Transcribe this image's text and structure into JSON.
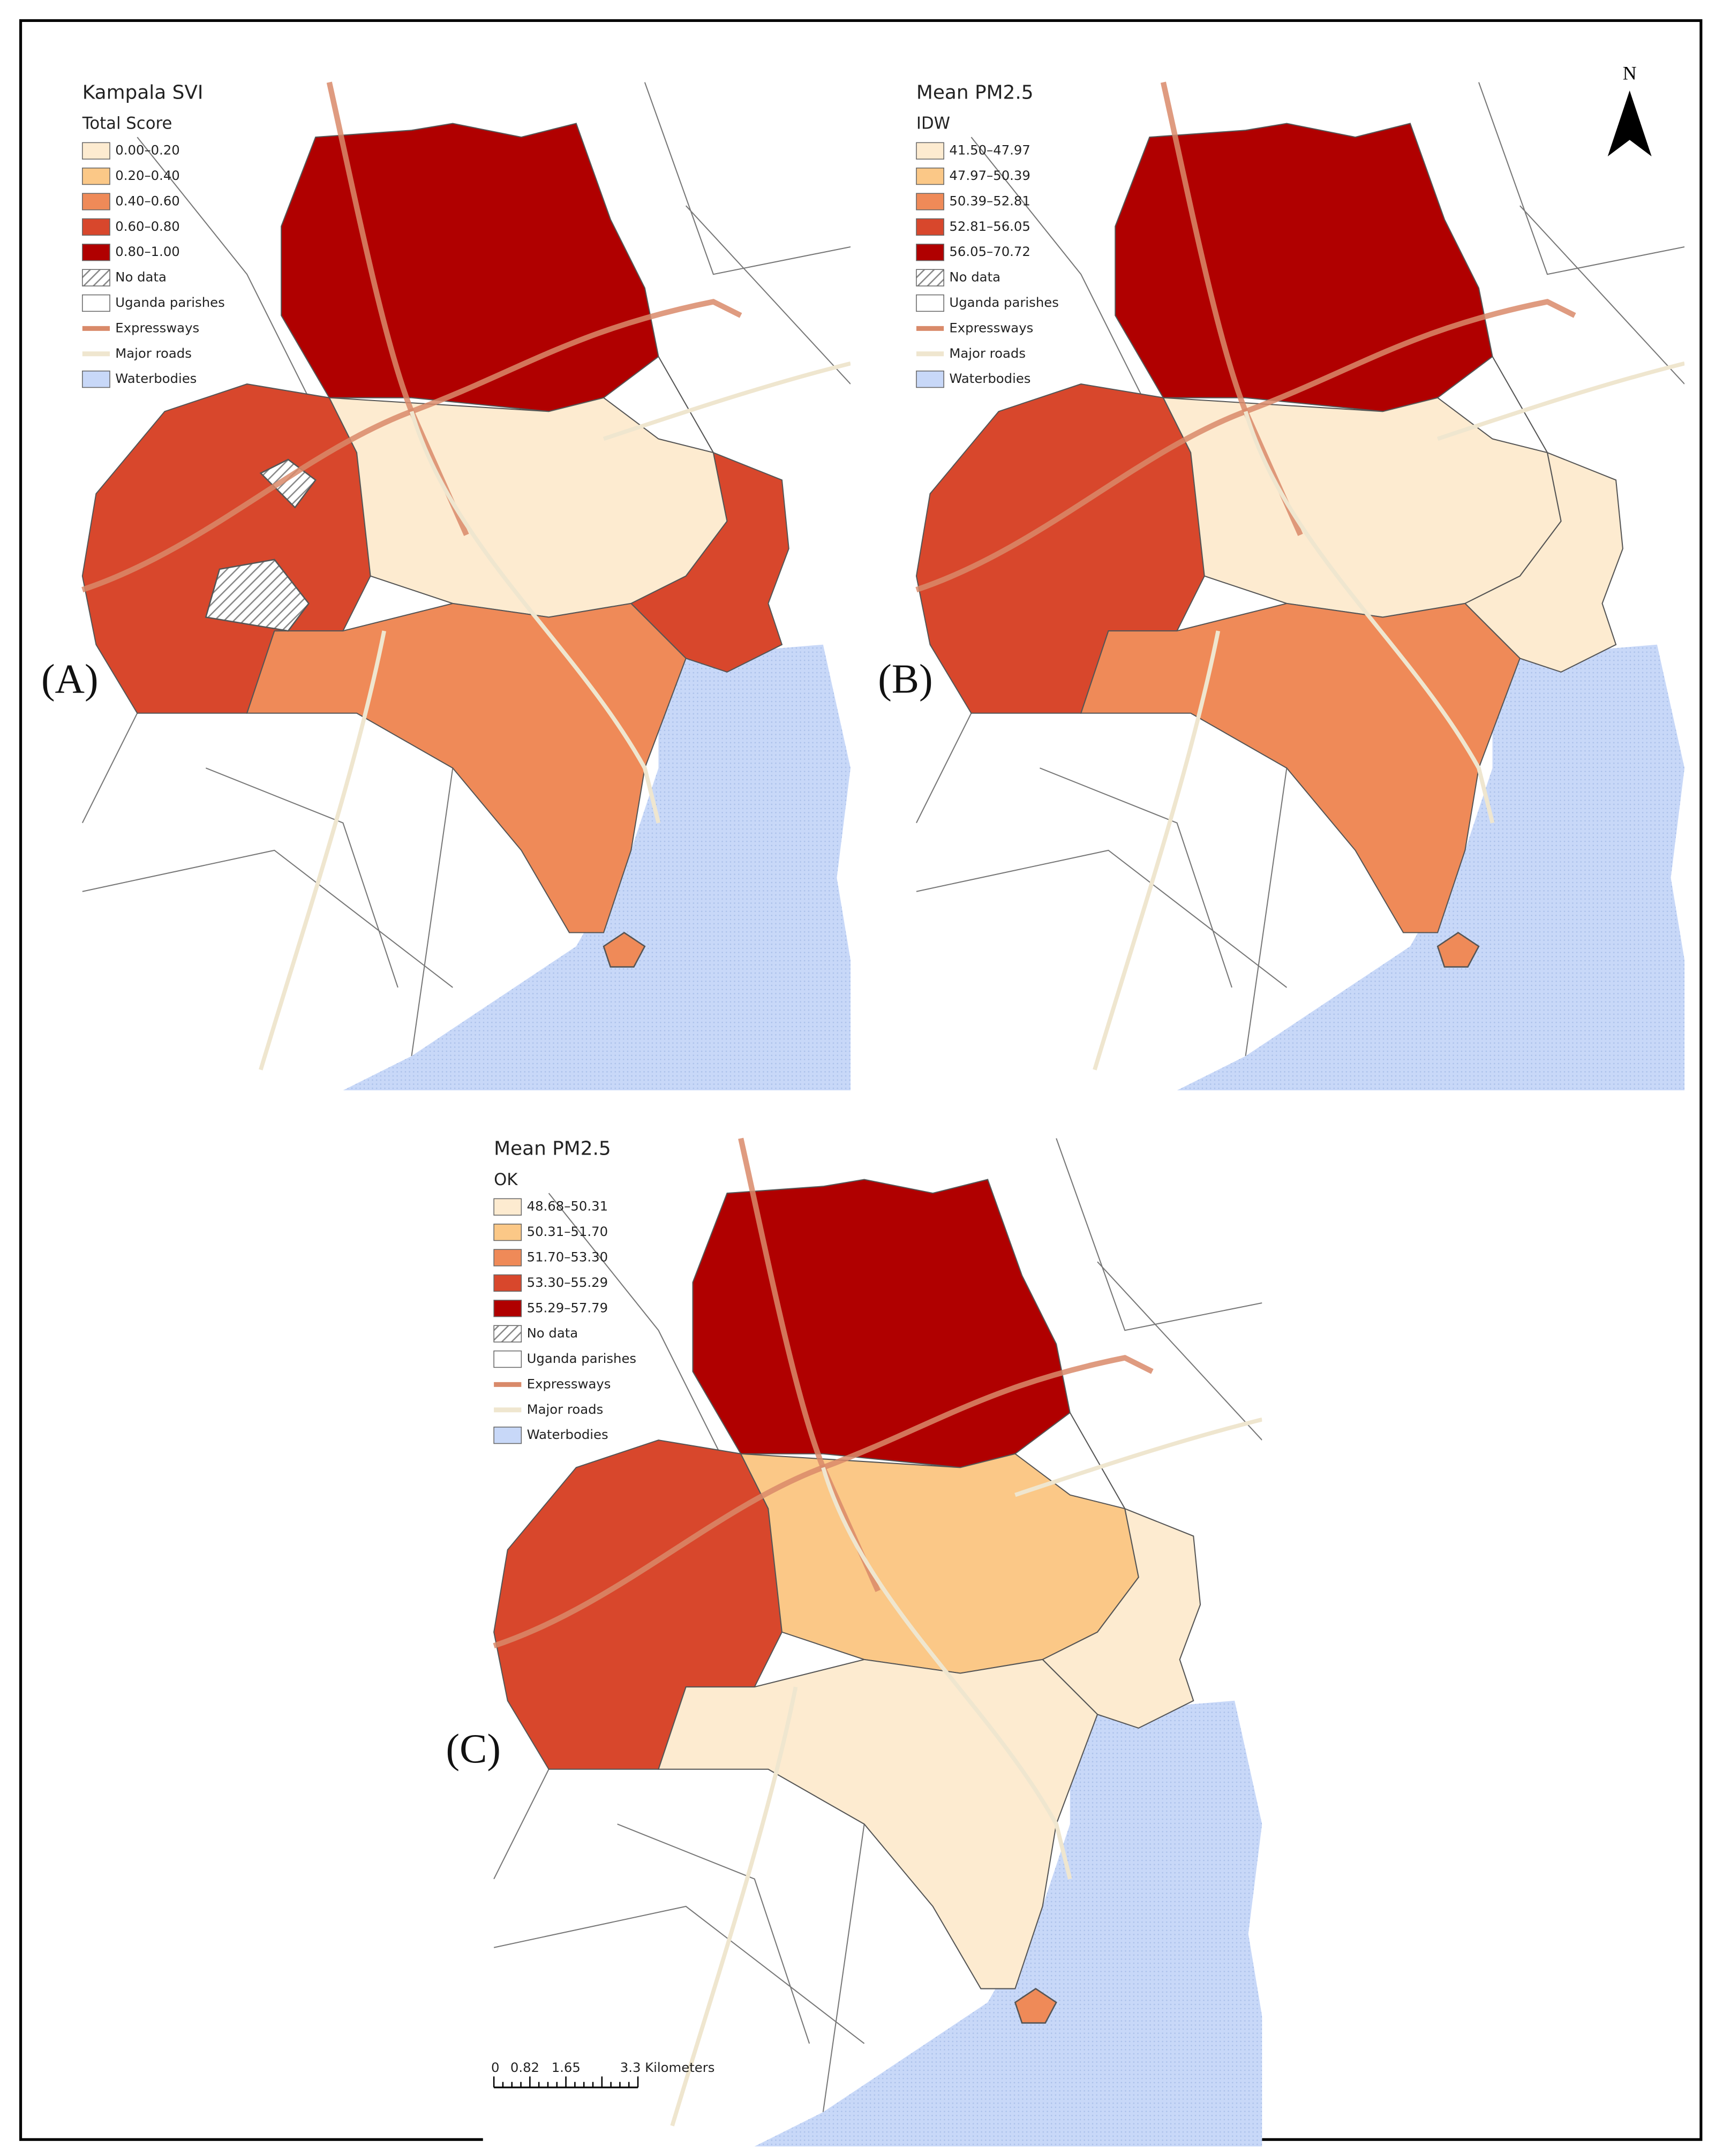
{
  "panels": [
    {
      "label": "(A)",
      "legend": {
        "title": "Kampala SVI",
        "subtitle": "Total Score",
        "items": [
          {
            "label": "0.00–0.20",
            "color": "#fdebd0",
            "symbol": "fill"
          },
          {
            "label": "0.20–0.40",
            "color": "#fbc887",
            "symbol": "fill"
          },
          {
            "label": "0.40–0.60",
            "color": "#ef8a58",
            "symbol": "fill"
          },
          {
            "label": "0.60–0.80",
            "color": "#d8472c",
            "symbol": "fill"
          },
          {
            "label": "0.80–1.00",
            "color": "#b00000",
            "symbol": "fill"
          },
          {
            "label": "No data",
            "color": "#999999",
            "symbol": "hatch"
          },
          {
            "label": "Uganda parishes",
            "color": "#ffffff",
            "symbol": "fill"
          },
          {
            "label": "Expressways",
            "color": "#d98a6a",
            "symbol": "line"
          },
          {
            "label": "Major roads",
            "color": "#efe6cf",
            "symbol": "line"
          },
          {
            "label": "Waterbodies",
            "color": "#c8d8f8",
            "symbol": "fill"
          }
        ]
      }
    },
    {
      "label": "(B)",
      "legend": {
        "title": "Mean PM2.5",
        "subtitle": "IDW",
        "items": [
          {
            "label": "41.50–47.97",
            "color": "#fdebd0",
            "symbol": "fill"
          },
          {
            "label": "47.97–50.39",
            "color": "#fbc887",
            "symbol": "fill"
          },
          {
            "label": "50.39–52.81",
            "color": "#ef8a58",
            "symbol": "fill"
          },
          {
            "label": "52.81–56.05",
            "color": "#d8472c",
            "symbol": "fill"
          },
          {
            "label": "56.05–70.72",
            "color": "#b00000",
            "symbol": "fill"
          },
          {
            "label": "No data",
            "color": "#999999",
            "symbol": "hatch"
          },
          {
            "label": "Uganda parishes",
            "color": "#ffffff",
            "symbol": "fill"
          },
          {
            "label": "Expressways",
            "color": "#d98a6a",
            "symbol": "line"
          },
          {
            "label": "Major roads",
            "color": "#efe6cf",
            "symbol": "line"
          },
          {
            "label": "Waterbodies",
            "color": "#c8d8f8",
            "symbol": "fill"
          }
        ]
      }
    },
    {
      "label": "(C)",
      "legend": {
        "title": "Mean PM2.5",
        "subtitle": "OK",
        "items": [
          {
            "label": "48.68–50.31",
            "color": "#fdebd0",
            "symbol": "fill"
          },
          {
            "label": "50.31–51.70",
            "color": "#fbc887",
            "symbol": "fill"
          },
          {
            "label": "51.70–53.30",
            "color": "#ef8a58",
            "symbol": "fill"
          },
          {
            "label": "53.30–55.29",
            "color": "#d8472c",
            "symbol": "fill"
          },
          {
            "label": "55.29–57.79",
            "color": "#b00000",
            "symbol": "fill"
          },
          {
            "label": "No data",
            "color": "#999999",
            "symbol": "hatch"
          },
          {
            "label": "Uganda parishes",
            "color": "#ffffff",
            "symbol": "fill"
          },
          {
            "label": "Expressways",
            "color": "#d98a6a",
            "symbol": "line"
          },
          {
            "label": "Major roads",
            "color": "#efe6cf",
            "symbol": "line"
          },
          {
            "label": "Waterbodies",
            "color": "#c8d8f8",
            "symbol": "fill"
          }
        ]
      }
    }
  ],
  "north_arrow": "N",
  "scale_bar": {
    "labels": [
      "0",
      "0.82",
      "1.65",
      "3.3 Kilometers"
    ]
  }
}
